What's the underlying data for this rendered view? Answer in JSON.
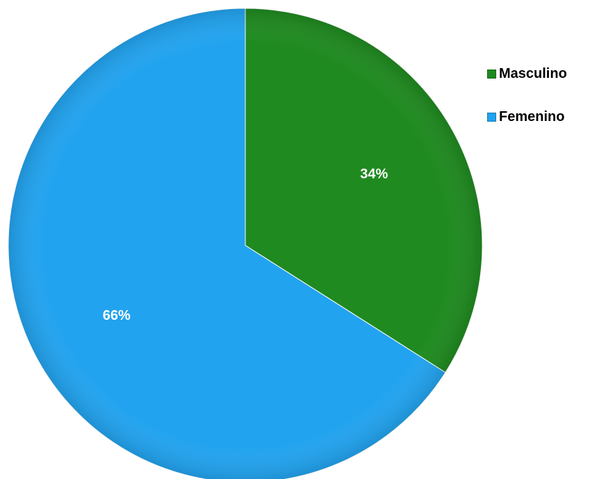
{
  "chart_data": {
    "type": "pie",
    "categories": [
      "Masculino",
      "Femenino"
    ],
    "values": [
      34,
      66
    ],
    "value_labels": [
      "34%",
      "66%"
    ],
    "colors": [
      "#1f8a1f",
      "#22a3ef"
    ],
    "legend_position": "right"
  },
  "legend": {
    "items": [
      {
        "label": "Masculino",
        "color": "#1f8a1f"
      },
      {
        "label": "Femenino",
        "color": "#22a3ef"
      }
    ]
  }
}
